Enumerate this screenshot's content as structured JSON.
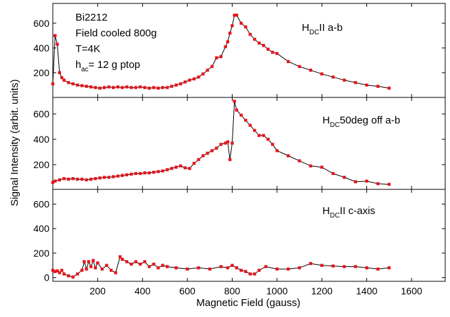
{
  "axes": {
    "xlabel": "Magnetic Field (gauss)",
    "ylabel": "Signal Intensity (arbit. units)"
  },
  "chart_data": [
    {
      "type": "line",
      "xlim": [
        0,
        1750
      ],
      "xticks": [
        200,
        400,
        600,
        800,
        1000,
        1200,
        1400,
        1600
      ],
      "ylim": [
        0,
        760
      ],
      "yticks": [
        200,
        400,
        600
      ],
      "annotations": [
        {
          "text": "Bi2212"
        },
        {
          "text": "Field cooled 800g"
        },
        {
          "text": "T=4K"
        },
        {
          "text": "h",
          "sub": "ac",
          "after": "= 12 g ptop"
        },
        {
          "text": "H",
          "sub": "DC",
          "after": "II a-b"
        }
      ],
      "series": [
        {
          "color": "#e8141b",
          "line_color": "#000000",
          "x": [
            0,
            10,
            20,
            30,
            40,
            50,
            70,
            90,
            110,
            130,
            150,
            170,
            190,
            210,
            230,
            250,
            270,
            290,
            310,
            330,
            350,
            370,
            390,
            410,
            430,
            450,
            470,
            490,
            510,
            530,
            550,
            570,
            590,
            610,
            630,
            650,
            670,
            690,
            710,
            730,
            750,
            770,
            780,
            790,
            800,
            810,
            820,
            840,
            860,
            880,
            900,
            920,
            940,
            960,
            980,
            1000,
            1050,
            1100,
            1150,
            1200,
            1250,
            1300,
            1350,
            1400,
            1450,
            1500
          ],
          "values": [
            110,
            500,
            430,
            200,
            160,
            140,
            120,
            110,
            100,
            95,
            90,
            85,
            80,
            75,
            80,
            85,
            80,
            85,
            80,
            85,
            80,
            80,
            85,
            80,
            75,
            80,
            75,
            80,
            80,
            90,
            100,
            110,
            125,
            140,
            150,
            165,
            190,
            220,
            250,
            320,
            330,
            410,
            450,
            520,
            580,
            665,
            665,
            600,
            570,
            510,
            470,
            440,
            420,
            390,
            365,
            355,
            290,
            250,
            220,
            190,
            165,
            140,
            120,
            100,
            90,
            75
          ]
        }
      ]
    },
    {
      "type": "line",
      "xlim": [
        0,
        1750
      ],
      "xticks": [
        200,
        400,
        600,
        800,
        1000,
        1200,
        1400,
        1600
      ],
      "ylim": [
        5,
        730
      ],
      "yticks": [
        200,
        400,
        600
      ],
      "annotations": [
        {
          "text": "H",
          "sub": "DC",
          "after": "50deg off a-b"
        }
      ],
      "series": [
        {
          "color": "#e8141b",
          "line_color": "#000000",
          "x": [
            0,
            10,
            30,
            50,
            70,
            90,
            110,
            130,
            150,
            170,
            190,
            210,
            230,
            250,
            270,
            290,
            310,
            330,
            350,
            370,
            390,
            410,
            430,
            450,
            470,
            490,
            510,
            530,
            550,
            570,
            590,
            610,
            630,
            650,
            670,
            690,
            710,
            730,
            750,
            770,
            780,
            790,
            800,
            810,
            820,
            840,
            860,
            880,
            900,
            920,
            940,
            960,
            980,
            1000,
            1050,
            1100,
            1150,
            1200,
            1250,
            1300,
            1350,
            1400,
            1450,
            1500
          ],
          "values": [
            60,
            70,
            80,
            90,
            85,
            90,
            85,
            85,
            80,
            85,
            90,
            95,
            100,
            100,
            105,
            110,
            115,
            120,
            125,
            130,
            130,
            135,
            135,
            140,
            145,
            150,
            160,
            170,
            180,
            190,
            175,
            170,
            210,
            240,
            270,
            290,
            310,
            330,
            360,
            370,
            380,
            240,
            370,
            700,
            630,
            590,
            550,
            510,
            470,
            430,
            430,
            400,
            360,
            310,
            270,
            230,
            190,
            180,
            130,
            100,
            65,
            70,
            50,
            45
          ]
        }
      ]
    },
    {
      "type": "line",
      "xlim": [
        0,
        1750
      ],
      "xticks": [
        200,
        400,
        600,
        800,
        1000,
        1200,
        1400,
        1600
      ],
      "ylim": [
        -30,
        720
      ],
      "yticks": [
        0,
        200,
        400,
        600
      ],
      "annotations": [
        {
          "text": "H",
          "sub": "DC",
          "after": "II c-axis"
        }
      ],
      "series": [
        {
          "color": "#e8141b",
          "line_color": "#000000",
          "x": [
            0,
            10,
            20,
            30,
            40,
            50,
            70,
            90,
            110,
            130,
            140,
            150,
            160,
            170,
            180,
            190,
            200,
            220,
            240,
            260,
            280,
            300,
            310,
            330,
            350,
            370,
            390,
            410,
            430,
            450,
            470,
            490,
            510,
            550,
            600,
            650,
            700,
            750,
            780,
            800,
            820,
            840,
            860,
            880,
            900,
            920,
            950,
            1000,
            1050,
            1100,
            1150,
            1200,
            1250,
            1300,
            1350,
            1400,
            1450,
            1500
          ],
          "values": [
            60,
            50,
            55,
            40,
            60,
            30,
            15,
            5,
            30,
            60,
            130,
            70,
            130,
            90,
            140,
            80,
            120,
            70,
            100,
            60,
            40,
            170,
            150,
            130,
            110,
            130,
            110,
            130,
            90,
            110,
            80,
            100,
            90,
            80,
            70,
            80,
            70,
            90,
            80,
            100,
            80,
            60,
            50,
            30,
            30,
            60,
            90,
            70,
            70,
            80,
            115,
            100,
            95,
            90,
            90,
            80,
            70,
            80
          ]
        }
      ]
    }
  ]
}
